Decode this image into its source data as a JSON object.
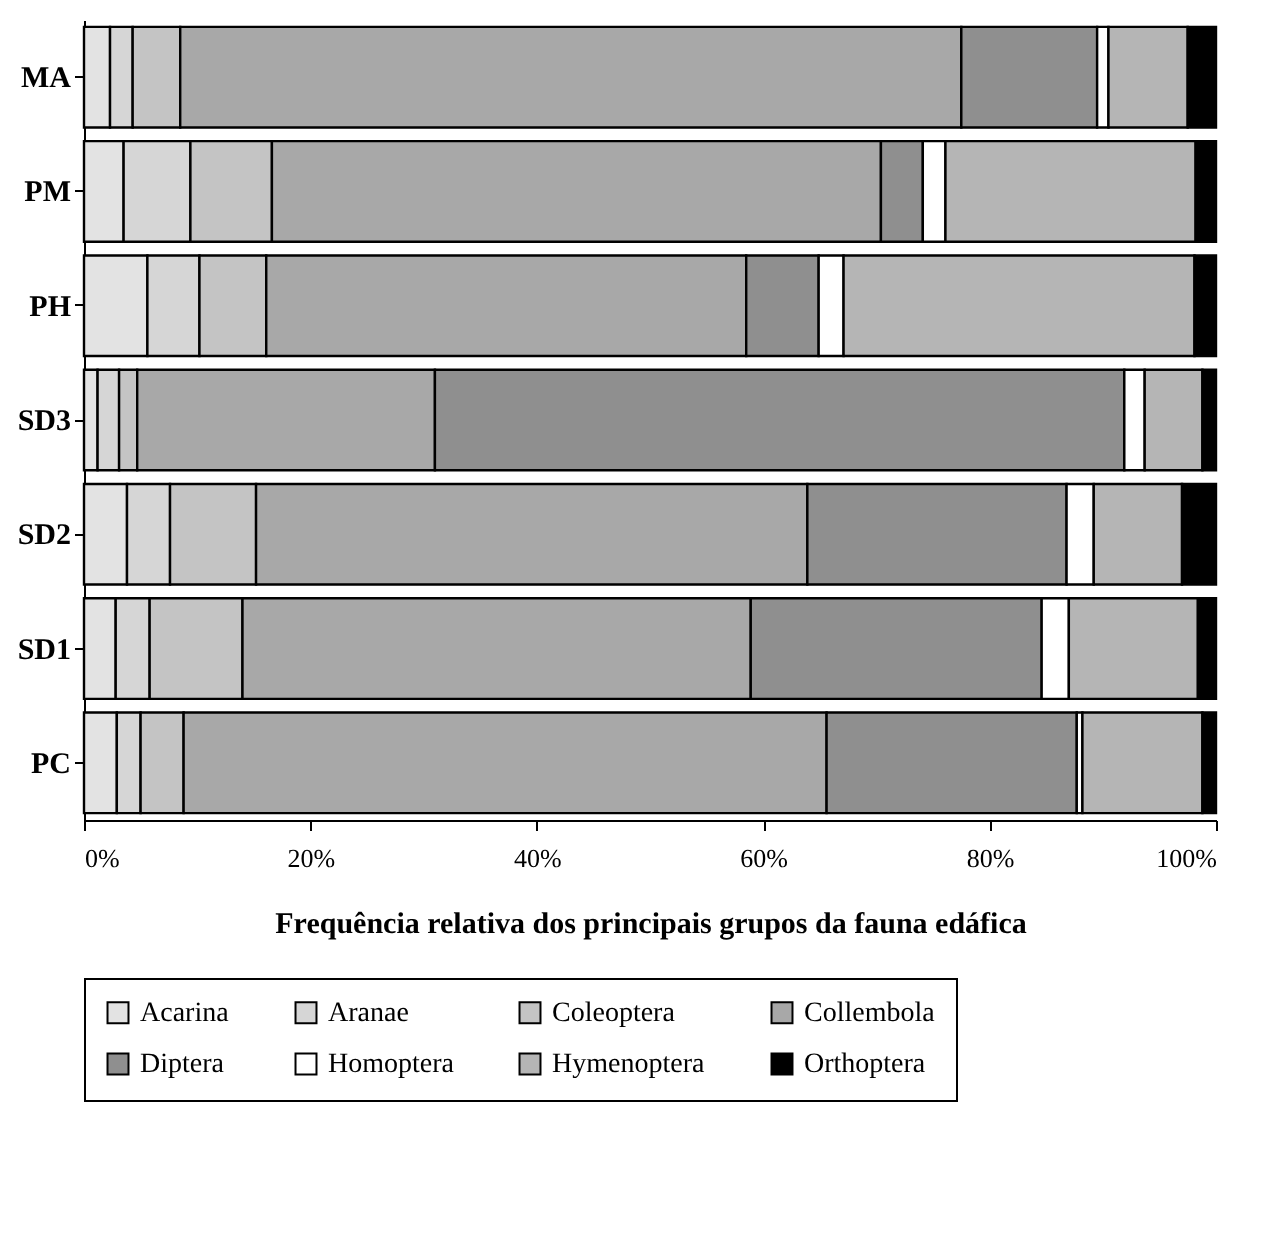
{
  "chart_data": {
    "type": "bar",
    "orientation": "horizontal",
    "stacked": true,
    "xlabel": "Frequência relativa dos principais grupos da fauna edáfica",
    "categories": [
      "MA",
      "PM",
      "PH",
      "SD3",
      "SD2",
      "SD1",
      "PC"
    ],
    "xlim": [
      0,
      100
    ],
    "xticks": [
      {
        "value": 0,
        "label": "0%"
      },
      {
        "value": 20,
        "label": "20%"
      },
      {
        "value": 40,
        "label": "40%"
      },
      {
        "value": 60,
        "label": "60%"
      },
      {
        "value": 80,
        "label": "80%"
      },
      {
        "value": 100,
        "label": "100%"
      }
    ],
    "grid": false,
    "legend": "bottom",
    "series": [
      {
        "name": "Acarina",
        "color": "#e3e3e3",
        "values": [
          2.3,
          3.5,
          5.6,
          1.2,
          3.8,
          2.8,
          2.9
        ]
      },
      {
        "name": "Aranae",
        "color": "#d6d6d6",
        "values": [
          2.0,
          5.9,
          4.6,
          1.9,
          3.8,
          3.0,
          2.1
        ]
      },
      {
        "name": "Coleoptera",
        "color": "#c4c4c4",
        "values": [
          4.2,
          7.2,
          5.9,
          1.6,
          7.6,
          8.2,
          3.8
        ]
      },
      {
        "name": "Collembola",
        "color": "#a8a8a8",
        "values": [
          69.0,
          53.8,
          42.4,
          26.3,
          48.7,
          44.9,
          56.8
        ]
      },
      {
        "name": "Diptera",
        "color": "#8f8f8f",
        "values": [
          12.0,
          3.7,
          6.4,
          60.9,
          22.9,
          25.7,
          22.1
        ]
      },
      {
        "name": "Homoptera",
        "color": "#ffffff",
        "values": [
          1.0,
          2.0,
          2.2,
          1.8,
          2.4,
          2.4,
          0.5
        ]
      },
      {
        "name": "Hymenoptera",
        "color": "#b5b5b5",
        "values": [
          7.0,
          22.1,
          31.0,
          5.1,
          7.8,
          11.4,
          10.6
        ]
      },
      {
        "name": "Orthoptera",
        "color": "#000000",
        "values": [
          2.5,
          1.8,
          1.9,
          1.2,
          3.0,
          1.6,
          1.2
        ]
      }
    ]
  }
}
